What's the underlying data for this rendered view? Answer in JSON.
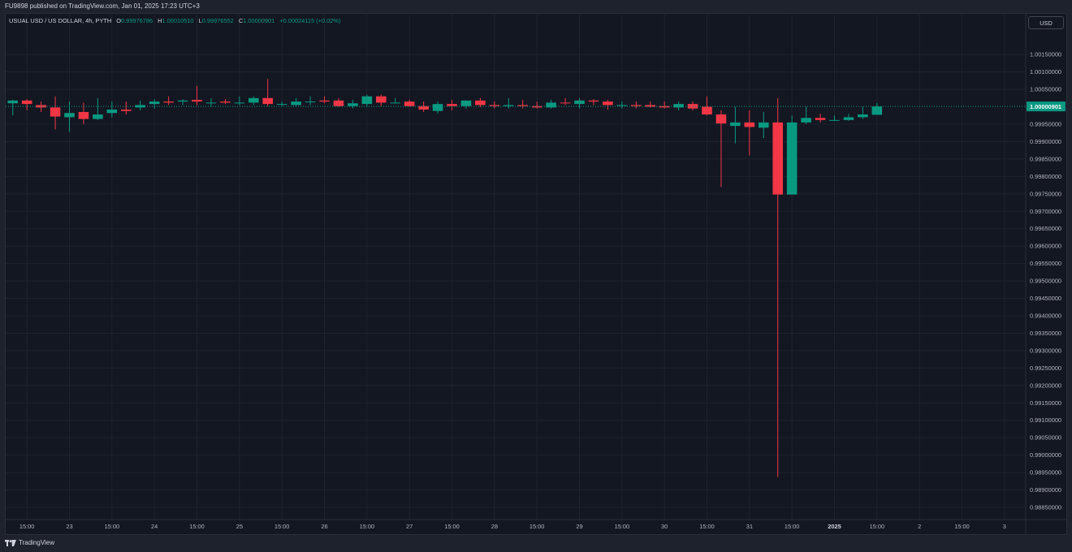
{
  "header": {
    "published": "FU9898 published on TradingView.com, Jan 01, 2025 17:23 UTC+3"
  },
  "legend": {
    "symbol": "USUAL USD / US DOLLAR, 4h, PYTH",
    "o_label": "O",
    "o_value": "0.99976786",
    "h_label": "H",
    "h_value": "1.00010510",
    "l_label": "L",
    "l_value": "0.99976552",
    "c_label": "C",
    "c_value": "1.00000901",
    "change": "+0.00024115 (+0.02%)"
  },
  "currency_button": "USD",
  "footer": {
    "brand": "TradingView"
  },
  "colors": {
    "up": "#089981",
    "down": "#f23645",
    "background": "#131722",
    "grid": "#1e222d",
    "text": "#b2b5be"
  },
  "chart_data": {
    "type": "candlestick",
    "y_ticks": [
      "1.00150000",
      "1.00100000",
      "1.00050000",
      "0.99950000",
      "0.99900000",
      "0.99850000",
      "0.99800000",
      "0.99750000",
      "0.99700000",
      "0.99650000",
      "0.99600000",
      "0.99550000",
      "0.99500000",
      "0.99450000",
      "0.99400000",
      "0.99350000",
      "0.99300000",
      "0.99250000",
      "0.99200000",
      "0.99150000",
      "0.99100000",
      "0.99050000",
      "0.99000000",
      "0.98950000",
      "0.98900000",
      "0.98850000"
    ],
    "y_tick_values": [
      1.0015,
      1.001,
      1.0005,
      0.9995,
      0.999,
      0.9985,
      0.998,
      0.9975,
      0.997,
      0.9965,
      0.996,
      0.9955,
      0.995,
      0.9945,
      0.994,
      0.9935,
      0.993,
      0.9925,
      0.992,
      0.9915,
      0.991,
      0.9905,
      0.99,
      0.9895,
      0.989,
      0.9885
    ],
    "ylim": [
      0.98822,
      1.00218
    ],
    "x_ticks": [
      "15:00",
      "23",
      "15:00",
      "24",
      "15:00",
      "25",
      "15:00",
      "26",
      "15:00",
      "27",
      "15:00",
      "28",
      "15:00",
      "29",
      "15:00",
      "30",
      "15:00",
      "31",
      "15:00",
      "2025",
      "15:00",
      "2",
      "15:00",
      "3"
    ],
    "x_tick_index": [
      1,
      4,
      7,
      10,
      13,
      16,
      19,
      22,
      25,
      28,
      31,
      34,
      37,
      40,
      43,
      46,
      49,
      52,
      55,
      58,
      61,
      64,
      67,
      70
    ],
    "x_range": [
      -0.5,
      71.5
    ],
    "last_price": {
      "value": 1.00000901,
      "label": "1.00000901"
    },
    "candles": [
      {
        "o": 1.0001,
        "h": 1.0002,
        "l": 0.99975,
        "c": 1.00018
      },
      {
        "o": 1.00018,
        "h": 1.00022,
        "l": 0.9999,
        "c": 1.00008
      },
      {
        "o": 1.00005,
        "h": 1.00015,
        "l": 0.99985,
        "c": 0.99998
      },
      {
        "o": 0.99998,
        "h": 1.0003,
        "l": 0.99935,
        "c": 0.99972
      },
      {
        "o": 0.9997,
        "h": 1.00015,
        "l": 0.99928,
        "c": 0.99982
      },
      {
        "o": 0.99985,
        "h": 1.00012,
        "l": 0.9995,
        "c": 0.99965
      },
      {
        "o": 0.99965,
        "h": 1.00025,
        "l": 0.99962,
        "c": 0.99978
      },
      {
        "o": 0.99982,
        "h": 1.00015,
        "l": 0.9997,
        "c": 0.99992
      },
      {
        "o": 0.99992,
        "h": 1.00015,
        "l": 0.99978,
        "c": 0.99988
      },
      {
        "o": 0.99998,
        "h": 1.00018,
        "l": 0.9999,
        "c": 1.00005
      },
      {
        "o": 1.00008,
        "h": 1.00022,
        "l": 0.99995,
        "c": 1.00015
      },
      {
        "o": 1.00015,
        "h": 1.0003,
        "l": 1.00005,
        "c": 1.00012
      },
      {
        "o": 1.00015,
        "h": 1.00022,
        "l": 1.00005,
        "c": 1.00018
      },
      {
        "o": 1.0002,
        "h": 1.0006,
        "l": 1.00005,
        "c": 1.00015
      },
      {
        "o": 1.00012,
        "h": 1.00025,
        "l": 1.0,
        "c": 1.00012
      },
      {
        "o": 1.00015,
        "h": 1.00022,
        "l": 1.00008,
        "c": 1.00012
      },
      {
        "o": 1.00012,
        "h": 1.0003,
        "l": 1.00005,
        "c": 1.00012
      },
      {
        "o": 1.00012,
        "h": 1.0003,
        "l": 1.00005,
        "c": 1.00025
      },
      {
        "o": 1.00025,
        "h": 1.0008,
        "l": 1.00002,
        "c": 1.00008
      },
      {
        "o": 1.00008,
        "h": 1.00015,
        "l": 1.00002,
        "c": 1.00008
      },
      {
        "o": 1.00005,
        "h": 1.00025,
        "l": 1.0,
        "c": 1.00015
      },
      {
        "o": 1.00015,
        "h": 1.0003,
        "l": 1.00005,
        "c": 1.00015
      },
      {
        "o": 1.00018,
        "h": 1.0003,
        "l": 1.0001,
        "c": 1.00015
      },
      {
        "o": 1.00018,
        "h": 1.00025,
        "l": 1.0,
        "c": 1.00002
      },
      {
        "o": 1.00002,
        "h": 1.0002,
        "l": 0.99995,
        "c": 1.0001
      },
      {
        "o": 1.00008,
        "h": 1.00035,
        "l": 1.0,
        "c": 1.0003
      },
      {
        "o": 1.0003,
        "h": 1.00035,
        "l": 1.0,
        "c": 1.00012
      },
      {
        "o": 1.00012,
        "h": 1.00025,
        "l": 1.0001,
        "c": 1.00012
      },
      {
        "o": 1.00015,
        "h": 1.0002,
        "l": 1.0,
        "c": 1.00002
      },
      {
        "o": 1.00002,
        "h": 1.00015,
        "l": 0.99985,
        "c": 0.99992
      },
      {
        "o": 0.99988,
        "h": 1.00015,
        "l": 0.9998,
        "c": 1.00008
      },
      {
        "o": 1.00008,
        "h": 1.0002,
        "l": 0.9999,
        "c": 1.00002
      },
      {
        "o": 1.00002,
        "h": 1.00018,
        "l": 0.99995,
        "c": 1.00018
      },
      {
        "o": 1.00018,
        "h": 1.00025,
        "l": 1.0,
        "c": 1.00005
      },
      {
        "o": 1.00005,
        "h": 1.00015,
        "l": 0.99995,
        "c": 1.00002
      },
      {
        "o": 1.00002,
        "h": 1.00025,
        "l": 0.99995,
        "c": 1.00005
      },
      {
        "o": 1.00005,
        "h": 1.0002,
        "l": 0.99995,
        "c": 1.00002
      },
      {
        "o": 1.00002,
        "h": 1.00015,
        "l": 0.99995,
        "c": 0.99998
      },
      {
        "o": 0.99998,
        "h": 1.0002,
        "l": 0.99995,
        "c": 1.00012
      },
      {
        "o": 1.00012,
        "h": 1.00025,
        "l": 1.00005,
        "c": 1.0001
      },
      {
        "o": 1.00008,
        "h": 1.00025,
        "l": 0.99995,
        "c": 1.00018
      },
      {
        "o": 1.00018,
        "h": 1.00022,
        "l": 1.00005,
        "c": 1.00015
      },
      {
        "o": 1.00015,
        "h": 1.0002,
        "l": 0.99992,
        "c": 1.00005
      },
      {
        "o": 1.00005,
        "h": 1.00015,
        "l": 0.99995,
        "c": 1.00005
      },
      {
        "o": 1.00005,
        "h": 1.00015,
        "l": 0.99995,
        "c": 1.00002
      },
      {
        "o": 1.00005,
        "h": 1.00015,
        "l": 0.99998,
        "c": 1.0
      },
      {
        "o": 1.00002,
        "h": 1.00015,
        "l": 0.99995,
        "c": 0.99998
      },
      {
        "o": 0.99998,
        "h": 1.00015,
        "l": 0.9999,
        "c": 1.00008
      },
      {
        "o": 1.00008,
        "h": 1.00015,
        "l": 0.9999,
        "c": 0.99995
      },
      {
        "o": 1.0,
        "h": 1.0003,
        "l": 0.99975,
        "c": 0.99978
      },
      {
        "o": 0.99978,
        "h": 0.9999,
        "l": 0.9977,
        "c": 0.99952
      },
      {
        "o": 0.99945,
        "h": 1.0,
        "l": 0.99895,
        "c": 0.99955
      },
      {
        "o": 0.99955,
        "h": 0.9999,
        "l": 0.9986,
        "c": 0.99942
      },
      {
        "o": 0.9994,
        "h": 0.99985,
        "l": 0.9991,
        "c": 0.99955
      },
      {
        "o": 0.99955,
        "h": 1.00025,
        "l": 0.98937,
        "c": 0.99748
      },
      {
        "o": 0.99748,
        "h": 0.99975,
        "l": 0.99748,
        "c": 0.99955
      },
      {
        "o": 0.99955,
        "h": 1.0,
        "l": 0.9995,
        "c": 0.99968
      },
      {
        "o": 0.99968,
        "h": 0.9998,
        "l": 0.99955,
        "c": 0.99962
      },
      {
        "o": 0.99962,
        "h": 0.99975,
        "l": 0.9996,
        "c": 0.99962
      },
      {
        "o": 0.99962,
        "h": 0.9998,
        "l": 0.9996,
        "c": 0.9997
      },
      {
        "o": 0.9997,
        "h": 1.0,
        "l": 0.99965,
        "c": 0.99978
      },
      {
        "o": 0.99977,
        "h": 1.00011,
        "l": 0.99977,
        "c": 1.00001
      }
    ]
  }
}
